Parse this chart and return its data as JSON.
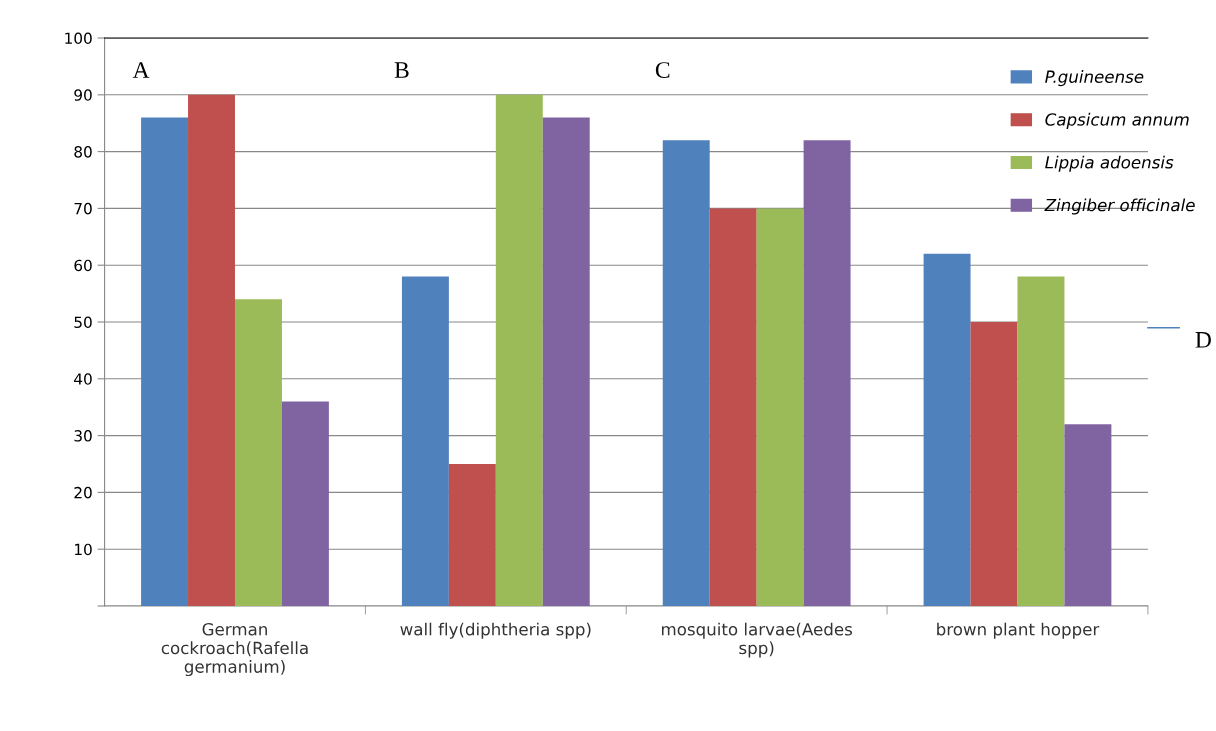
{
  "chart_data": {
    "type": "bar",
    "categories": [
      "German\ncockroach(Rafella\ngermanium)",
      "wall fly(diphtheria spp)",
      "mosquito larvae(Aedes\nspp)",
      "brown plant hopper"
    ],
    "series": [
      {
        "name": "P.guineense",
        "color": "#4f81bd",
        "values": [
          86,
          58,
          82,
          62
        ]
      },
      {
        "name": "Capsicum annum",
        "color": "#c0504d",
        "values": [
          90,
          25,
          70,
          50
        ]
      },
      {
        "name": "Lippia adoensis",
        "color": "#9bbb59",
        "values": [
          54,
          90,
          70,
          58
        ]
      },
      {
        "name": "Zingiber officinale",
        "color": "#8064a2",
        "values": [
          36,
          86,
          82,
          32
        ]
      }
    ],
    "ylim": [
      0,
      100
    ],
    "yticks": [
      {
        "value": 0,
        "label": null
      },
      10,
      20,
      30,
      40,
      50,
      60,
      70,
      80,
      90,
      100
    ],
    "grid": "y",
    "legend": "top right",
    "annotations": [
      "A",
      "B",
      "C",
      "D"
    ]
  }
}
